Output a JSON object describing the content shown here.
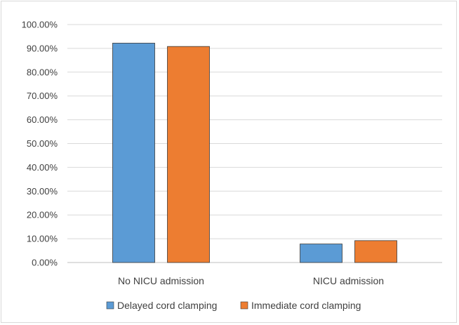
{
  "chart_data": {
    "type": "bar",
    "title": "",
    "xlabel": "",
    "ylabel": "",
    "categories": [
      "No NICU admission",
      "NICU admission"
    ],
    "series": [
      {
        "name": "Delayed cord clamping",
        "color": "#5b9bd5",
        "values": [
          92.2,
          7.8
        ]
      },
      {
        "name": "Immediate cord clamping",
        "color": "#ed7d31",
        "values": [
          90.8,
          9.2
        ]
      }
    ],
    "ylim": [
      0,
      100
    ],
    "yticks": [
      "0.00%",
      "10.00%",
      "20.00%",
      "30.00%",
      "40.00%",
      "50.00%",
      "60.00%",
      "70.00%",
      "80.00%",
      "90.00%",
      "100.00%"
    ],
    "grid": true,
    "legend_position": "bottom"
  }
}
